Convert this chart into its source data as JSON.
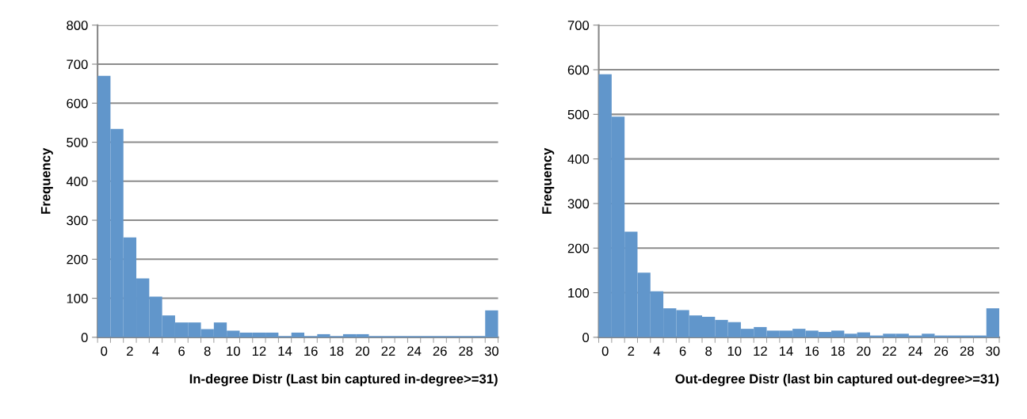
{
  "chart_data": [
    {
      "type": "bar",
      "categories": [
        "0",
        null,
        "2",
        null,
        "4",
        null,
        "6",
        null,
        "8",
        null,
        "10",
        null,
        "12",
        null,
        "14",
        null,
        "16",
        null,
        "18",
        null,
        "20",
        null,
        "22",
        null,
        "24",
        null,
        "26",
        null,
        "28",
        null,
        "30"
      ],
      "values": [
        670,
        534,
        256,
        151,
        104,
        56,
        38,
        38,
        21,
        38,
        17,
        12,
        12,
        12,
        3,
        12,
        3,
        8,
        3,
        8,
        8,
        3,
        3,
        3,
        3,
        3,
        3,
        3,
        3,
        3,
        69
      ],
      "color": "#6196cb",
      "ylim": [
        0,
        800
      ],
      "yticks": [
        0,
        100,
        200,
        300,
        400,
        500,
        600,
        700,
        800
      ],
      "grid": "y",
      "xlabel": "In-degree Distr (Last bin captured in-degree>=31)",
      "ylabel": "Frequency"
    },
    {
      "type": "bar",
      "categories": [
        "0",
        null,
        "2",
        null,
        "4",
        null,
        "6",
        null,
        "8",
        null,
        "10",
        null,
        "12",
        null,
        "14",
        null,
        "16",
        null,
        "18",
        null,
        "20",
        null,
        "22",
        null,
        "24",
        null,
        "26",
        null,
        "28",
        null,
        "30"
      ],
      "values": [
        590,
        495,
        237,
        145,
        103,
        65,
        61,
        49,
        46,
        39,
        34,
        19,
        23,
        15,
        15,
        19,
        15,
        12,
        15,
        8,
        11,
        4,
        8,
        8,
        4,
        8,
        4,
        4,
        4,
        4,
        65
      ],
      "color": "#6196cb",
      "ylim": [
        0,
        700
      ],
      "yticks": [
        0,
        100,
        200,
        300,
        400,
        500,
        600,
        700
      ],
      "grid": "y",
      "xlabel": "Out-degree Distr (last bin captured out-degree>=31)",
      "ylabel": "Frequency"
    }
  ]
}
